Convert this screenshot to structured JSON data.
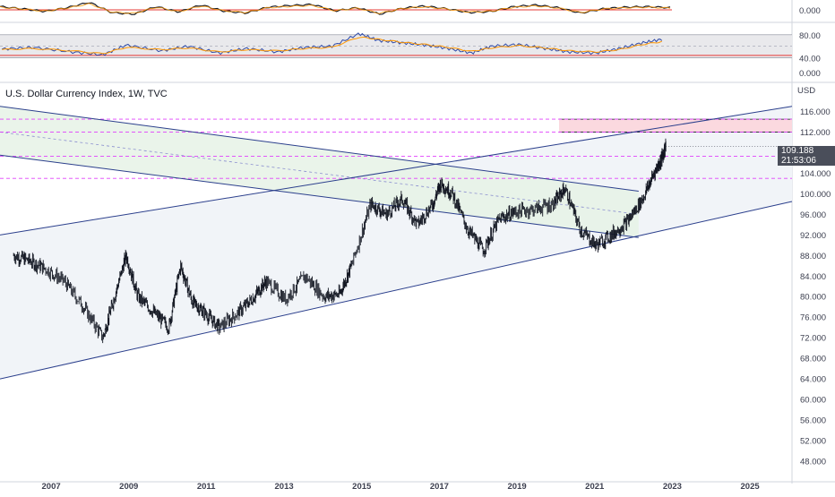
{
  "title": "U.S. Dollar Currency Index, 1W, TVC",
  "last_price": "109.188",
  "countdown": "21:53:06",
  "colors": {
    "candle": "#131722",
    "channel_line": "#2b3f8c",
    "resistance": "#e040fb",
    "band_fill": "#e6f2e6",
    "channel_fill": "#f1f4f8",
    "target_zone": "#fbd9df",
    "osc_fast": "#2e4aa8",
    "osc_slow": "#ff9800",
    "osc_zero": "#e53935"
  },
  "chart_data": [
    {
      "type": "line",
      "title": "",
      "xlabel": "",
      "ylabel": "",
      "y_ticks": [
        "0.000"
      ],
      "series": [
        {
          "values": [
            0.6,
            0.2,
            -0.3,
            0.4,
            1.4,
            -0.5,
            -0.8,
            0.6,
            -0.4,
            0.9,
            -0.2,
            -0.6,
            0.5,
            0.8,
            1.0,
            -0.2,
            0.4,
            -0.8,
            0.3,
            0.7,
            0.2,
            -0.5,
            -0.3,
            0.6,
            0.9,
            0.4,
            -0.6,
            0.2,
            0.5,
            0.6,
            0.4
          ]
        }
      ]
    },
    {
      "type": "line",
      "title": "",
      "y_ticks": [
        "80.00",
        "40.00",
        "0.000"
      ],
      "ylim": [
        0,
        100
      ],
      "x": [
        2005.7,
        2006.5,
        2007.5,
        2008.3,
        2008.9,
        2009.8,
        2010.5,
        2011.3,
        2012.0,
        2012.8,
        2013.5,
        2014.2,
        2014.9,
        2015.4,
        2016.0,
        2016.6,
        2017.2,
        2017.8,
        2018.3,
        2019.0,
        2019.7,
        2020.3,
        2021.0,
        2021.6,
        2022.2,
        2022.7
      ],
      "series": [
        {
          "values": [
            55,
            58,
            50,
            45,
            62,
            52,
            60,
            48,
            56,
            50,
            58,
            60,
            82,
            70,
            66,
            62,
            56,
            48,
            60,
            63,
            56,
            50,
            48,
            56,
            66,
            72
          ]
        },
        {
          "values": [
            54,
            56,
            52,
            47,
            58,
            54,
            57,
            50,
            54,
            52,
            56,
            58,
            76,
            72,
            67,
            63,
            58,
            51,
            57,
            61,
            57,
            52,
            50,
            54,
            63,
            68
          ]
        }
      ]
    },
    {
      "type": "line",
      "title": "U.S. Dollar Currency Index, 1W, TVC",
      "ylabel": "USD",
      "ylim": [
        44,
        118
      ],
      "y_ticks": [
        "116.000",
        "112.000",
        "108.000",
        "104.000",
        "100.000",
        "96.000",
        "92.000",
        "88.000",
        "84.000",
        "80.000",
        "76.000",
        "72.000",
        "68.000",
        "64.000",
        "60.000",
        "56.000",
        "52.000",
        "48.000"
      ],
      "x_ticks": [
        "2007",
        "2009",
        "2011",
        "2013",
        "2015",
        "2017",
        "2019",
        "2021",
        "2023",
        "2025"
      ],
      "x": [
        2006.0,
        2006.4,
        2006.8,
        2007.3,
        2007.8,
        2008.3,
        2008.6,
        2008.9,
        2009.2,
        2009.6,
        2010.0,
        2010.3,
        2010.6,
        2010.9,
        2011.3,
        2011.8,
        2012.2,
        2012.5,
        2013.0,
        2013.5,
        2014.0,
        2014.4,
        2014.7,
        2015.2,
        2015.6,
        2016.0,
        2016.4,
        2016.8,
        2017.0,
        2017.3,
        2017.7,
        2018.1,
        2018.5,
        2018.9,
        2019.4,
        2019.9,
        2020.2,
        2020.6,
        2021.0,
        2021.4,
        2021.8,
        2022.2,
        2022.5,
        2022.7,
        2022.8
      ],
      "series": [
        {
          "values": [
            88.0,
            87.0,
            85.5,
            83.0,
            78.0,
            72.0,
            80.0,
            88.0,
            80.0,
            77.0,
            74.0,
            86.0,
            79.0,
            77.0,
            74.0,
            77.0,
            80.0,
            83.0,
            79.5,
            84.0,
            80.0,
            80.5,
            86.0,
            98.0,
            96.0,
            99.0,
            94.0,
            98.0,
            102.0,
            100.0,
            93.0,
            89.0,
            95.0,
            96.5,
            97.0,
            98.0,
            101.0,
            93.0,
            90.0,
            92.0,
            94.5,
            99.0,
            104.0,
            107.0,
            109.188
          ]
        }
      ],
      "levels": [
        114.5,
        112.0,
        107.3,
        103.0
      ],
      "target_zone": [
        112.0,
        114.5
      ]
    }
  ]
}
